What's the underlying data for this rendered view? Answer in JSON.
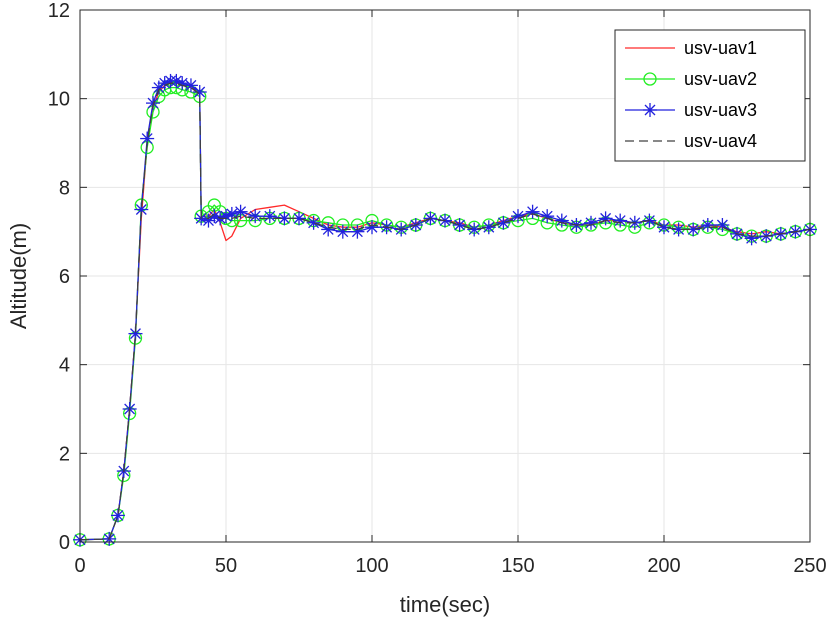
{
  "chart_data": {
    "type": "line",
    "xlabel": "time(sec)",
    "ylabel": "Altitude(m)",
    "xlim": [
      0,
      250
    ],
    "ylim": [
      0,
      12
    ],
    "xticks": [
      0,
      50,
      100,
      150,
      200,
      250
    ],
    "yticks": [
      0,
      2,
      4,
      6,
      8,
      10,
      12
    ],
    "grid": true,
    "legend_position": "top-right",
    "series": [
      {
        "name": "usv-uav1",
        "color": "#ff2a2a",
        "style": "solid",
        "marker": "none",
        "x": [
          0,
          10,
          13,
          15,
          17,
          19,
          21,
          23,
          25,
          27,
          29,
          31,
          33,
          35,
          38,
          41,
          41.5,
          44,
          46,
          48,
          50,
          52,
          55,
          60,
          65,
          70,
          75,
          80,
          85,
          90,
          95,
          100,
          105,
          110,
          115,
          120,
          125,
          130,
          135,
          140,
          145,
          150,
          155,
          160,
          165,
          170,
          175,
          180,
          185,
          190,
          195,
          200,
          205,
          210,
          215,
          220,
          225,
          230,
          235,
          240,
          245,
          250
        ],
        "y": [
          0.05,
          0.07,
          0.6,
          1.6,
          3.0,
          4.7,
          7.3,
          9.0,
          9.8,
          10.15,
          10.3,
          10.35,
          10.35,
          10.3,
          10.25,
          10.1,
          7.35,
          7.35,
          7.5,
          7.2,
          6.8,
          6.9,
          7.3,
          7.5,
          7.55,
          7.6,
          7.45,
          7.3,
          7.15,
          7.1,
          7.1,
          7.2,
          7.15,
          7.1,
          7.2,
          7.3,
          7.25,
          7.2,
          7.1,
          7.15,
          7.25,
          7.35,
          7.4,
          7.3,
          7.2,
          7.15,
          7.15,
          7.25,
          7.25,
          7.2,
          7.25,
          7.15,
          7.15,
          7.1,
          7.15,
          7.1,
          7.0,
          6.95,
          7.0,
          6.95,
          7.0,
          7.05
        ]
      },
      {
        "name": "usv-uav2",
        "color": "#22ee22",
        "style": "solid",
        "marker": "circle",
        "x": [
          0,
          10,
          13,
          15,
          17,
          19,
          21,
          23,
          25,
          27,
          29,
          31,
          33,
          35,
          38,
          41,
          41.5,
          44,
          46,
          48,
          50,
          52,
          55,
          60,
          65,
          70,
          75,
          80,
          85,
          90,
          95,
          100,
          105,
          110,
          115,
          120,
          125,
          130,
          135,
          140,
          145,
          150,
          155,
          160,
          165,
          170,
          175,
          180,
          185,
          190,
          195,
          200,
          205,
          210,
          215,
          220,
          225,
          230,
          235,
          240,
          245,
          250
        ],
        "y": [
          0.05,
          0.07,
          0.6,
          1.5,
          2.9,
          4.6,
          7.6,
          8.9,
          9.7,
          10.05,
          10.2,
          10.25,
          10.25,
          10.2,
          10.15,
          10.05,
          7.35,
          7.45,
          7.6,
          7.45,
          7.3,
          7.25,
          7.25,
          7.25,
          7.3,
          7.3,
          7.3,
          7.25,
          7.2,
          7.15,
          7.15,
          7.25,
          7.15,
          7.1,
          7.15,
          7.3,
          7.25,
          7.15,
          7.1,
          7.15,
          7.2,
          7.25,
          7.3,
          7.2,
          7.15,
          7.1,
          7.15,
          7.2,
          7.15,
          7.1,
          7.2,
          7.15,
          7.1,
          7.05,
          7.1,
          7.05,
          6.95,
          6.9,
          6.9,
          6.95,
          7.0,
          7.05
        ]
      },
      {
        "name": "usv-uav3",
        "color": "#2222dd",
        "style": "solid",
        "marker": "asterisk",
        "x": [
          0,
          10,
          13,
          15,
          17,
          19,
          21,
          23,
          25,
          27,
          29,
          31,
          33,
          35,
          38,
          41,
          41.5,
          44,
          46,
          48,
          50,
          52,
          55,
          60,
          65,
          70,
          75,
          80,
          85,
          90,
          95,
          100,
          105,
          110,
          115,
          120,
          125,
          130,
          135,
          140,
          145,
          150,
          155,
          160,
          165,
          170,
          175,
          180,
          185,
          190,
          195,
          200,
          205,
          210,
          215,
          220,
          225,
          230,
          235,
          240,
          245,
          250
        ],
        "y": [
          0.05,
          0.07,
          0.6,
          1.6,
          3.0,
          4.7,
          7.5,
          9.1,
          9.9,
          10.25,
          10.35,
          10.4,
          10.4,
          10.35,
          10.3,
          10.15,
          7.3,
          7.25,
          7.35,
          7.3,
          7.35,
          7.4,
          7.45,
          7.35,
          7.35,
          7.3,
          7.3,
          7.2,
          7.05,
          7.0,
          7.0,
          7.1,
          7.1,
          7.05,
          7.15,
          7.3,
          7.25,
          7.15,
          7.05,
          7.1,
          7.2,
          7.35,
          7.45,
          7.35,
          7.25,
          7.15,
          7.2,
          7.3,
          7.25,
          7.2,
          7.25,
          7.1,
          7.05,
          7.05,
          7.15,
          7.15,
          6.95,
          6.85,
          6.9,
          6.95,
          7.0,
          7.05
        ]
      },
      {
        "name": "usv-uav4",
        "color": "#404040",
        "style": "dashed",
        "marker": "none",
        "x": [
          0,
          10,
          13,
          15,
          17,
          19,
          21,
          23,
          25,
          27,
          29,
          31,
          33,
          35,
          38,
          41,
          41.5,
          44,
          46,
          48,
          50,
          52,
          55,
          60,
          65,
          70,
          75,
          80,
          85,
          90,
          95,
          100,
          105,
          110,
          115,
          120,
          125,
          130,
          135,
          140,
          145,
          150,
          155,
          160,
          165,
          170,
          175,
          180,
          185,
          190,
          195,
          200,
          205,
          210,
          215,
          220,
          225,
          230,
          235,
          240,
          245,
          250
        ],
        "y": [
          0.05,
          0.07,
          0.6,
          1.6,
          3.0,
          4.7,
          7.5,
          9.0,
          9.85,
          10.2,
          10.3,
          10.35,
          10.35,
          10.3,
          10.25,
          10.1,
          7.3,
          7.3,
          7.4,
          7.3,
          7.3,
          7.3,
          7.35,
          7.3,
          7.3,
          7.3,
          7.3,
          7.2,
          7.1,
          7.05,
          7.05,
          7.15,
          7.1,
          7.05,
          7.15,
          7.3,
          7.25,
          7.15,
          7.05,
          7.1,
          7.2,
          7.3,
          7.4,
          7.3,
          7.2,
          7.15,
          7.15,
          7.25,
          7.2,
          7.2,
          7.25,
          7.1,
          7.05,
          7.05,
          7.1,
          7.1,
          6.95,
          6.9,
          6.9,
          6.95,
          7.0,
          7.05
        ]
      }
    ]
  }
}
